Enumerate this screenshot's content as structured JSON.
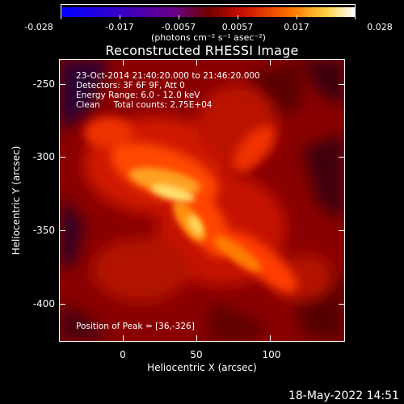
{
  "colorbar": {
    "ticks": [
      "-0.028",
      "-0.017",
      "-0.0057",
      "0.0057",
      "0.017",
      "0.028"
    ],
    "unit": "(photons cm⁻² s⁻¹ asec⁻²)"
  },
  "title": "Reconstructed RHESSI Image",
  "info": {
    "line1": "23-Oct-2014 21:40:20.000 to 21:46:20.000",
    "line2": "Detectors: 3F 6F 9F, Att 0",
    "line3": "Energy Range: 6.0 - 12.0 keV",
    "line4": "Clean     Total counts: 2.75E+04",
    "peak": "Position of Peak = [36,-326]"
  },
  "axes": {
    "xlabel": "Heliocentric X (arcsec)",
    "ylabel": "Heliocentric Y (arcsec)",
    "xticks": [
      "0",
      "50",
      "100"
    ],
    "yticks": [
      "-250",
      "-300",
      "-350",
      "-400"
    ]
  },
  "footer": "18-May-2022 14:51",
  "colors": {
    "background": "#000000",
    "colormap_low": "#0000ff",
    "colormap_mid": "#cc0000",
    "colormap_high": "#ffffff"
  }
}
